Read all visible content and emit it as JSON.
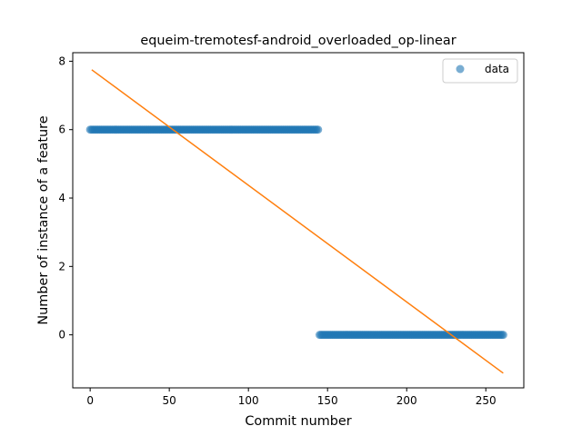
{
  "chart_data": {
    "type": "scatter",
    "title": "equeim-tremotesf-android_overloaded_op-linear",
    "xlabel": "Commit number",
    "ylabel": "Number of instance of a feature",
    "xlim": [
      -11,
      274
    ],
    "ylim": [
      -1.55,
      8.25
    ],
    "xticks": [
      0,
      50,
      100,
      150,
      200,
      250
    ],
    "yticks": [
      0,
      2,
      4,
      6,
      8
    ],
    "grid": false,
    "legend_position": "top-right",
    "series": [
      {
        "name": "data",
        "kind": "scatter",
        "color": "#1f77b4",
        "segments": [
          {
            "x_start": 0,
            "x_end": 144,
            "y": 6
          },
          {
            "x_start": 145,
            "x_end": 261,
            "y": 0
          }
        ]
      },
      {
        "kind": "line",
        "color": "#ff7f0e",
        "x": [
          1,
          261
        ],
        "y": [
          7.75,
          -1.12
        ]
      }
    ]
  }
}
